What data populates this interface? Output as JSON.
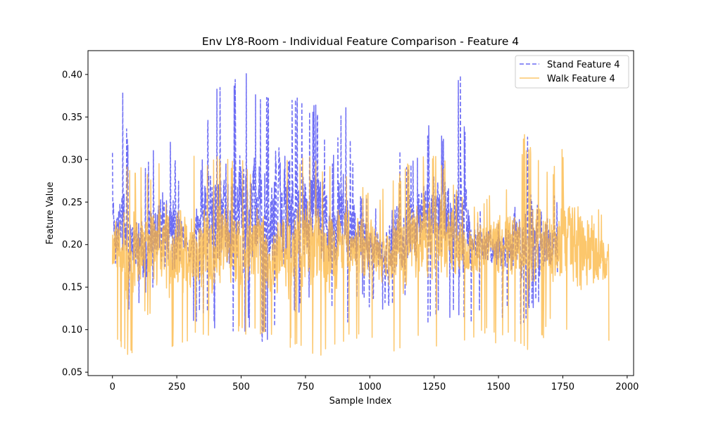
{
  "chart_data": {
    "type": "line",
    "title": "Env LY8-Room - Individual Feature Comparison - Feature 4",
    "xlabel": "Sample Index",
    "ylabel": "Feature Value",
    "xlim": [
      -95,
      2025
    ],
    "ylim": [
      0.046,
      0.428
    ],
    "xticks": [
      0,
      250,
      500,
      750,
      1000,
      1250,
      1500,
      1750,
      2000
    ],
    "yticks": [
      0.05,
      0.1,
      0.15,
      0.2,
      0.25,
      0.3,
      0.35,
      0.4
    ],
    "ytick_labels": [
      "0.05",
      "0.10",
      "0.15",
      "0.20",
      "0.25",
      "0.30",
      "0.35",
      "0.40"
    ],
    "grid": false,
    "legend_position": "upper right",
    "series": [
      {
        "name": "Stand Feature 4",
        "color": "#3b3bf0",
        "line_style": "dashed",
        "n_points": 1730,
        "x": [
          0,
          40,
          80,
          130,
          180,
          200,
          250,
          300,
          350,
          400,
          450,
          500,
          530,
          580,
          620,
          680,
          750,
          800,
          850,
          900,
          950,
          1000,
          1050,
          1100,
          1150,
          1200,
          1225,
          1280,
          1350,
          1400,
          1450,
          1500,
          1550,
          1600,
          1625,
          1680,
          1730
        ],
        "y": [
          0.308,
          0.384,
          0.26,
          0.306,
          0.33,
          0.352,
          0.3,
          0.18,
          0.31,
          0.398,
          0.385,
          0.405,
          0.411,
          0.372,
          0.392,
          0.38,
          0.368,
          0.363,
          0.3,
          0.376,
          0.27,
          0.26,
          0.235,
          0.33,
          0.3,
          0.31,
          0.342,
          0.33,
          0.408,
          0.23,
          0.25,
          0.23,
          0.27,
          0.3,
          0.368,
          0.27,
          0.26
        ],
        "y_low": [
          0.14,
          0.135,
          0.11,
          0.13,
          0.14,
          0.13,
          0.09,
          0.095,
          0.12,
          0.1,
          0.095,
          0.09,
          0.1,
          0.085,
          0.09,
          0.1,
          0.13,
          0.12,
          0.12,
          0.1,
          0.13,
          0.125,
          0.12,
          0.12,
          0.13,
          0.13,
          0.1,
          0.12,
          0.105,
          0.095,
          0.14,
          0.1,
          0.12,
          0.1,
          0.12,
          0.13,
          0.16
        ],
        "y_center": [
          0.22,
          0.22,
          0.2,
          0.2,
          0.22,
          0.22,
          0.21,
          0.2,
          0.24,
          0.24,
          0.23,
          0.24,
          0.24,
          0.23,
          0.24,
          0.24,
          0.24,
          0.24,
          0.22,
          0.24,
          0.21,
          0.2,
          0.19,
          0.21,
          0.21,
          0.23,
          0.24,
          0.23,
          0.22,
          0.2,
          0.2,
          0.19,
          0.2,
          0.21,
          0.22,
          0.2,
          0.2
        ]
      },
      {
        "name": "Walk Feature 4",
        "color": "#fbb43b",
        "line_style": "solid",
        "n_points": 1930,
        "x": [
          0,
          80,
          130,
          180,
          240,
          290,
          350,
          400,
          450,
          500,
          600,
          750,
          820,
          900,
          1000,
          1075,
          1150,
          1225,
          1300,
          1380,
          1450,
          1500,
          1550,
          1600,
          1650,
          1700,
          1760,
          1800,
          1850,
          1900,
          1930
        ],
        "y": [
          0.28,
          0.3,
          0.285,
          0.3,
          0.32,
          0.31,
          0.3,
          0.31,
          0.305,
          0.3,
          0.29,
          0.31,
          0.3,
          0.29,
          0.26,
          0.27,
          0.3,
          0.31,
          0.3,
          0.24,
          0.26,
          0.29,
          0.27,
          0.33,
          0.3,
          0.29,
          0.32,
          0.3,
          0.3,
          0.24,
          0.24
        ],
        "y_low": [
          0.085,
          0.065,
          0.12,
          0.074,
          0.08,
          0.08,
          0.085,
          0.075,
          0.09,
          0.09,
          0.085,
          0.074,
          0.067,
          0.085,
          0.08,
          0.063,
          0.09,
          0.08,
          0.074,
          0.085,
          0.09,
          0.08,
          0.09,
          0.074,
          0.074,
          0.1,
          0.1,
          0.1,
          0.1,
          0.076,
          0.08
        ],
        "y_center": [
          0.2,
          0.19,
          0.2,
          0.19,
          0.2,
          0.19,
          0.19,
          0.2,
          0.19,
          0.2,
          0.19,
          0.2,
          0.19,
          0.2,
          0.19,
          0.19,
          0.2,
          0.21,
          0.2,
          0.19,
          0.2,
          0.2,
          0.2,
          0.2,
          0.2,
          0.2,
          0.21,
          0.2,
          0.19,
          0.18,
          0.18
        ]
      }
    ]
  }
}
